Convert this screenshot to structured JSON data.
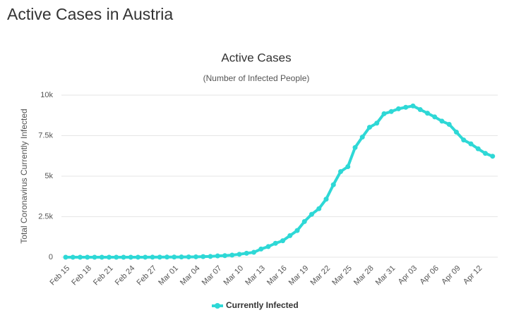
{
  "page_title": "Active Cases in Austria",
  "chart_data": {
    "type": "line",
    "title": "Active Cases",
    "subtitle": "(Number of Infected People)",
    "y_label": "Total Coronavirus Currently Infected",
    "categories": [
      "Feb 15",
      null,
      null,
      "Feb 18",
      null,
      null,
      "Feb 21",
      null,
      null,
      "Feb 24",
      null,
      null,
      "Feb 27",
      null,
      null,
      "Mar 01",
      null,
      null,
      "Mar 04",
      null,
      null,
      "Mar 07",
      null,
      null,
      "Mar 10",
      null,
      null,
      "Mar 13",
      null,
      null,
      "Mar 16",
      null,
      null,
      "Mar 19",
      null,
      null,
      "Mar 22",
      null,
      null,
      "Mar 25",
      null,
      null,
      "Mar 28",
      null,
      null,
      "Mar 31",
      null,
      null,
      "Apr 03",
      null,
      null,
      "Apr 06",
      null,
      null,
      "Apr 09",
      null,
      null,
      "Apr 12",
      null,
      null
    ],
    "series": [
      {
        "name": "Currently Infected",
        "color": "#2ed8d6",
        "values": [
          0,
          0,
          0,
          0,
          0,
          0,
          0,
          0,
          0,
          0,
          2,
          2,
          3,
          5,
          9,
          10,
          14,
          18,
          24,
          37,
          47,
          79,
          99,
          131,
          182,
          246,
          302,
          504,
          655,
          860,
          1016,
          1332,
          1646,
          2200,
          2649,
          2992,
          3582,
          4474,
          5283,
          5588,
          6769,
          7411,
          8018,
          8271,
          8852,
          8987,
          9158,
          9250,
          9334,
          9108,
          8886,
          8655,
          8395,
          8198,
          7718,
          7231,
          6993,
          6689,
          6407,
          6230
        ]
      }
    ],
    "ylim": [
      0,
      10000
    ],
    "yticks": [
      0,
      {
        "value": 2500,
        "label": "2.5k"
      },
      {
        "value": 5000,
        "label": "5k"
      },
      {
        "value": 7500,
        "label": "7.5k"
      },
      {
        "value": 10000,
        "label": "10k"
      }
    ],
    "grid": true
  }
}
